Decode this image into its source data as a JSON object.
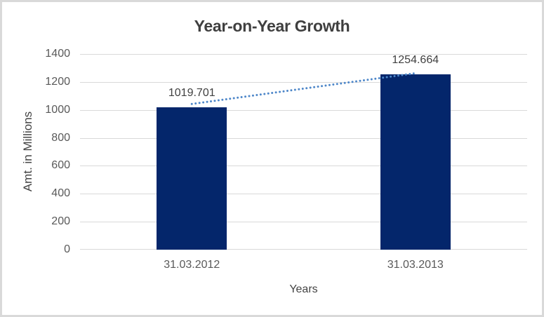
{
  "chart_data": {
    "type": "bar",
    "title": "Year-on-Year Growth",
    "categories": [
      "31.03.2012",
      "31.03.2013"
    ],
    "values": [
      1019.701,
      1254.664
    ],
    "data_labels": [
      "1019.701",
      "1254.664"
    ],
    "xlabel": "Years",
    "ylabel": "Amt. in Millions",
    "ylim": [
      0,
      1400
    ],
    "yticks": [
      0,
      200,
      400,
      600,
      800,
      1000,
      1200,
      1400
    ],
    "grid": "horizontal",
    "legend": "none",
    "bar_color": "#04266B",
    "trendline": {
      "type": "linear",
      "style": "dotted",
      "color": "#4E87C9",
      "from_value": 1019.701,
      "to_value": 1254.664
    },
    "colors": {
      "title": "#3F3F3F",
      "axis_titles": "#444444",
      "tick_labels": "#595959",
      "data_labels": "#404040",
      "gridline": "#D9D9D9",
      "background": "#FFFFFF",
      "border": "#D9D9D9"
    }
  }
}
